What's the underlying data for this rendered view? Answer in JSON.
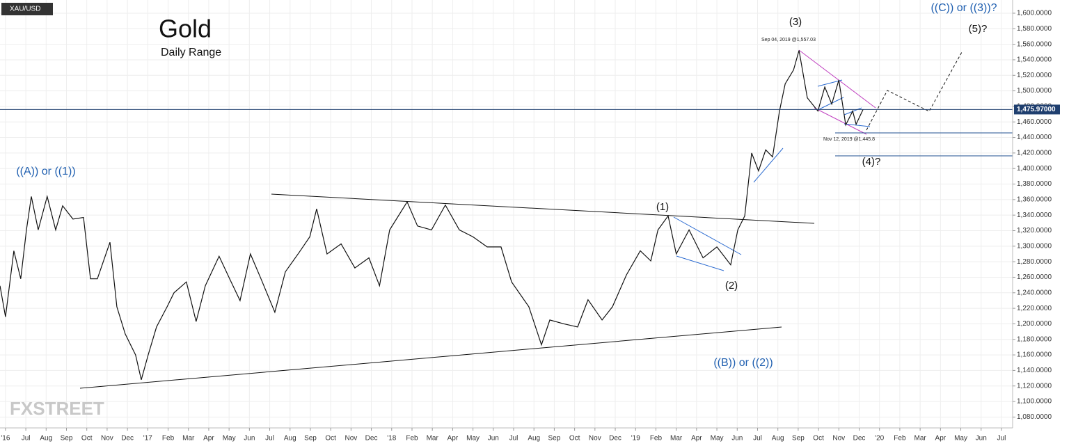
{
  "chart_data": {
    "type": "line",
    "symbol": "XAU/USD",
    "title": "Gold",
    "subtitle": "Daily Range",
    "x": [
      -0.27,
      0,
      0.41,
      0.75,
      1.03,
      1.27,
      1.61,
      2.05,
      2.47,
      2.81,
      3.32,
      3.84,
      4.18,
      4.52,
      5.14,
      5.48,
      5.89,
      6.4,
      6.68,
      7.02,
      7.43,
      7.95,
      8.29,
      8.9,
      9.38,
      9.83,
      10.51,
      11.03,
      11.54,
      12.05,
      12.57,
      13.25,
      13.77,
      14.45,
      14.97,
      15.31,
      15.82,
      16.51,
      17.19,
      17.88,
      18.4,
      18.9,
      19.76,
      20.27,
      20.96,
      21.64,
      22.33,
      23.0,
      23.7,
      24.38,
      24.9,
      25.75,
      26.37,
      26.78,
      27.47,
      28.15,
      28.66,
      29.35,
      29.86,
      30.55,
      31.23,
      31.75,
      32.1,
      32.6,
      33.0,
      33.63,
      34.32,
      35.0,
      35.68,
      36.03,
      36.37,
      36.71,
      37.05,
      37.4,
      37.74,
      38.08,
      38.36,
      38.77,
      39.04,
      39.45,
      39.97,
      40.31,
      40.65,
      41.0,
      41.34,
      41.68,
      41.85,
      42.19
    ],
    "series": [
      {
        "name": "XAU/USD",
        "color": "#111111",
        "values": [
          1249,
          1209,
          1294,
          1258,
          1321,
          1364,
          1321,
          1364,
          1321,
          1352,
          1335,
          1337,
          1258,
          1258,
          1305,
          1222,
          1187,
          1160,
          1128,
          1160,
          1196,
          1222,
          1240,
          1254,
          1203,
          1249,
          1287,
          1258,
          1230,
          1290,
          1258,
          1215,
          1267,
          1292,
          1312,
          1348,
          1290,
          1303,
          1272,
          1285,
          1249,
          1321,
          1357,
          1326,
          1321,
          1353,
          1321,
          1312,
          1299,
          1299,
          1254,
          1222,
          1173,
          1205,
          1200,
          1196,
          1231,
          1205,
          1222,
          1263,
          1294,
          1281,
          1321,
          1339,
          1290,
          1321,
          1285,
          1299,
          1276,
          1321,
          1339,
          1420,
          1397,
          1424,
          1415,
          1474,
          1509,
          1527,
          1552,
          1491,
          1474,
          1505,
          1483,
          1514,
          1456,
          1474,
          1457,
          1476
        ]
      }
    ],
    "last_value": {
      "value": 1475.97,
      "label": "1,475.97000"
    },
    "annotations": [
      "(3)",
      "Sep 04, 2019 @1,557.03",
      "((C)) or ((3))?",
      "(5)?",
      "Nov 12, 2019 @1,445.8",
      "(4)?",
      "((A)) or ((1))",
      "(1)",
      "(2)",
      "((B)) or ((2))"
    ],
    "watermark": "FXSTREET",
    "xlim": [
      -0.27,
      49.55
    ],
    "ylim": [
      1066,
      1617
    ],
    "xticks": [
      {
        "value": 0,
        "label": "'16"
      },
      {
        "value": 1,
        "label": "Jul"
      },
      {
        "value": 2,
        "label": "Aug"
      },
      {
        "value": 3,
        "label": "Sep"
      },
      {
        "value": 4,
        "label": "Oct"
      },
      {
        "value": 5,
        "label": "Nov"
      },
      {
        "value": 6,
        "label": "Dec"
      },
      {
        "value": 7,
        "label": "'17"
      },
      {
        "value": 8,
        "label": "Feb"
      },
      {
        "value": 9,
        "label": "Mar"
      },
      {
        "value": 10,
        "label": "Apr"
      },
      {
        "value": 11,
        "label": "May"
      },
      {
        "value": 12,
        "label": "Jun"
      },
      {
        "value": 13,
        "label": "Jul"
      },
      {
        "value": 14,
        "label": "Aug"
      },
      {
        "value": 15,
        "label": "Sep"
      },
      {
        "value": 16,
        "label": "Oct"
      },
      {
        "value": 17,
        "label": "Nov"
      },
      {
        "value": 18,
        "label": "Dec"
      },
      {
        "value": 19,
        "label": "'18"
      },
      {
        "value": 20,
        "label": "Feb"
      },
      {
        "value": 21,
        "label": "Mar"
      },
      {
        "value": 22,
        "label": "Apr"
      },
      {
        "value": 23,
        "label": "May"
      },
      {
        "value": 24,
        "label": "Jun"
      },
      {
        "value": 25,
        "label": "Jul"
      },
      {
        "value": 26,
        "label": "Aug"
      },
      {
        "value": 27,
        "label": "Sep"
      },
      {
        "value": 28,
        "label": "Oct"
      },
      {
        "value": 29,
        "label": "Nov"
      },
      {
        "value": 30,
        "label": "Dec"
      },
      {
        "value": 31,
        "label": "'19"
      },
      {
        "value": 32,
        "label": "Feb"
      },
      {
        "value": 33,
        "label": "Mar"
      },
      {
        "value": 34,
        "label": "Apr"
      },
      {
        "value": 35,
        "label": "May"
      },
      {
        "value": 36,
        "label": "Jun"
      },
      {
        "value": 37,
        "label": "Jul"
      },
      {
        "value": 38,
        "label": "Aug"
      },
      {
        "value": 39,
        "label": "Sep"
      },
      {
        "value": 40,
        "label": "Oct"
      },
      {
        "value": 41,
        "label": "Nov"
      },
      {
        "value": 42,
        "label": "Dec"
      },
      {
        "value": 43,
        "label": "'20"
      },
      {
        "value": 44,
        "label": "Feb"
      },
      {
        "value": 45,
        "label": "Mar"
      },
      {
        "value": 46,
        "label": "Apr"
      },
      {
        "value": 47,
        "label": "May"
      },
      {
        "value": 48,
        "label": "Jun"
      },
      {
        "value": 49,
        "label": "Jul"
      }
    ],
    "yticks": [
      {
        "value": 1080,
        "label": "1,080.0000"
      },
      {
        "value": 1100,
        "label": "1,100.0000"
      },
      {
        "value": 1120,
        "label": "1,120.0000"
      },
      {
        "value": 1140,
        "label": "1,140.0000"
      },
      {
        "value": 1160,
        "label": "1,160.0000"
      },
      {
        "value": 1180,
        "label": "1,180.0000"
      },
      {
        "value": 1200,
        "label": "1,200.0000"
      },
      {
        "value": 1220,
        "label": "1,220.0000"
      },
      {
        "value": 1240,
        "label": "1,240.0000"
      },
      {
        "value": 1260,
        "label": "1,260.0000"
      },
      {
        "value": 1280,
        "label": "1,280.0000"
      },
      {
        "value": 1300,
        "label": "1,300.0000"
      },
      {
        "value": 1320,
        "label": "1,320.0000"
      },
      {
        "value": 1340,
        "label": "1,340.0000"
      },
      {
        "value": 1360,
        "label": "1,360.0000"
      },
      {
        "value": 1380,
        "label": "1,380.0000"
      },
      {
        "value": 1400,
        "label": "1,400.0000"
      },
      {
        "value": 1420,
        "label": "1,420.0000"
      },
      {
        "value": 1440,
        "label": "1,440.0000"
      },
      {
        "value": 1460,
        "label": "1,460.0000"
      },
      {
        "value": 1480,
        "label": "1,480.0000"
      },
      {
        "value": 1500,
        "label": "1,500.0000"
      },
      {
        "value": 1520,
        "label": "1,520.0000"
      },
      {
        "value": 1540,
        "label": "1,540.0000"
      },
      {
        "value": 1560,
        "label": "1,560.0000"
      },
      {
        "value": 1580,
        "label": "1,580.0000"
      },
      {
        "value": 1600,
        "label": "1,600.0000"
      }
    ],
    "grid": true
  }
}
